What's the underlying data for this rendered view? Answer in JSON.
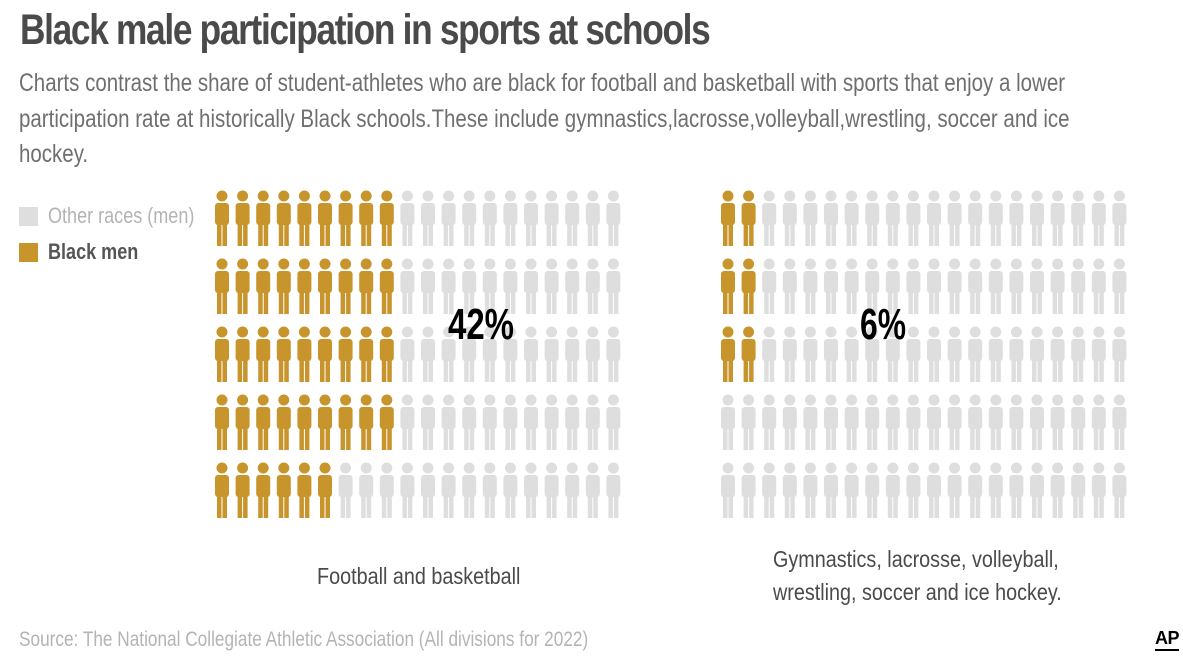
{
  "header": {
    "title": "Black male participation in sports at schools",
    "subtitle": "Charts contrast the share of student-athletes who are black for football and basketball with sports that enjoy a lower participation rate at historically Black schools.These include gymnastics,lacrosse,volleyball,wrestling, soccer and ice hockey."
  },
  "legend": {
    "other": {
      "label": "Other races (men)",
      "color": "#dedede"
    },
    "black": {
      "label": "Black men",
      "color": "#c8952d"
    }
  },
  "chart_data": [
    {
      "type": "waffle",
      "caption": "Football and basketball",
      "value_label": "42%",
      "value": 42,
      "total_icons": 100,
      "grid": {
        "rows": 5,
        "cols": 20
      }
    },
    {
      "type": "waffle",
      "caption": "Gymnastics, lacrosse, volleyball, wrestling, soccer and ice hockey.",
      "value_label": "6%",
      "value": 6,
      "total_icons": 100,
      "grid": {
        "rows": 5,
        "cols": 20
      }
    }
  ],
  "footer": {
    "source": "Source: The National Collegiate Athletic Association (All divisions for 2022)",
    "logo": "AP"
  }
}
